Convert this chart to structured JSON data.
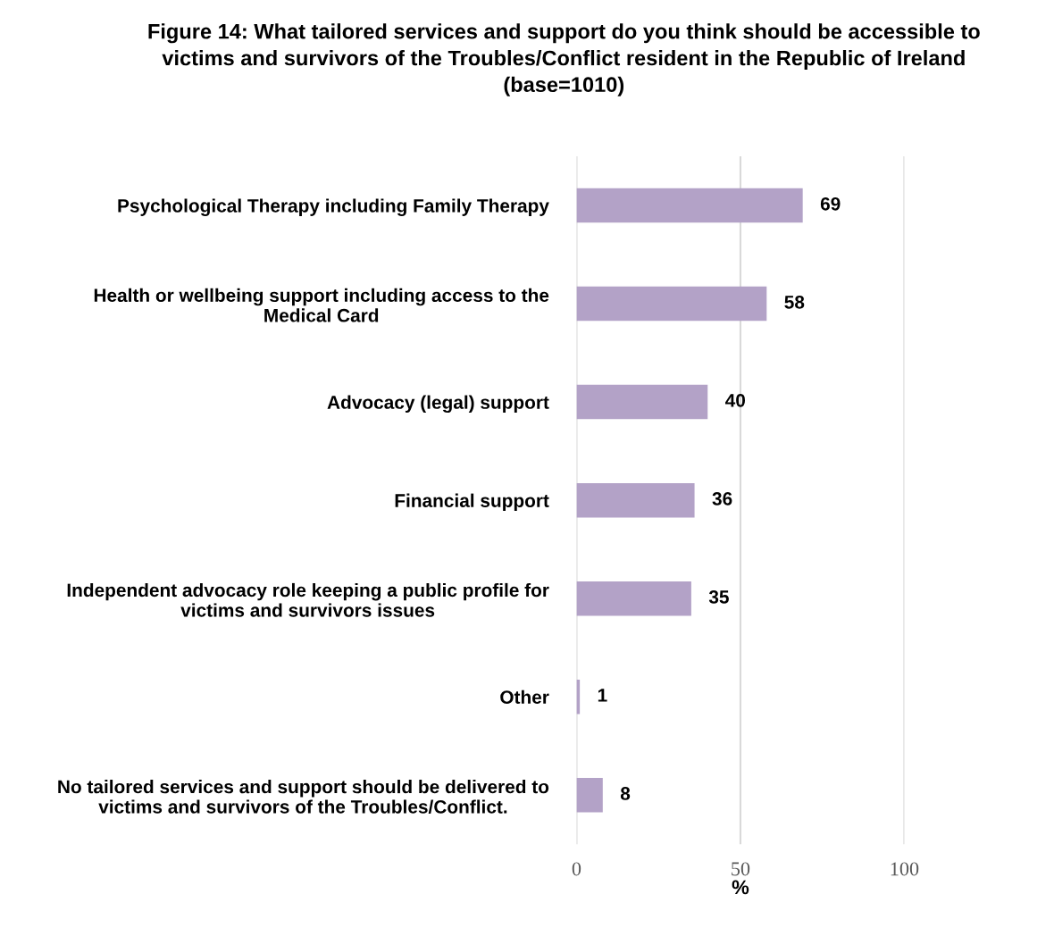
{
  "chart_data": {
    "type": "bar",
    "orientation": "horizontal",
    "title": "Figure 14: What tailored services and support do you think should be accessible to\nvictims and survivors of the Troubles/Conflict resident in the Republic of Ireland\n(base=1010)",
    "xlabel": "%",
    "categories": [
      "Psychological Therapy including Family Therapy",
      "Health or wellbeing support including access to the\nMedical Card",
      "Advocacy (legal) support",
      "Financial support",
      "Independent advocacy role keeping a public profile for\nvictims and survivors issues",
      "Other",
      "No tailored services and support should be delivered to\nvictims and survivors of the Troubles/Conflict."
    ],
    "values": [
      69,
      58,
      40,
      36,
      35,
      1,
      8
    ],
    "color": "#b3a2c7",
    "xlim": [
      0,
      100
    ],
    "xticks": [
      0,
      50,
      100
    ],
    "grid": "x",
    "data_labels": true
  }
}
